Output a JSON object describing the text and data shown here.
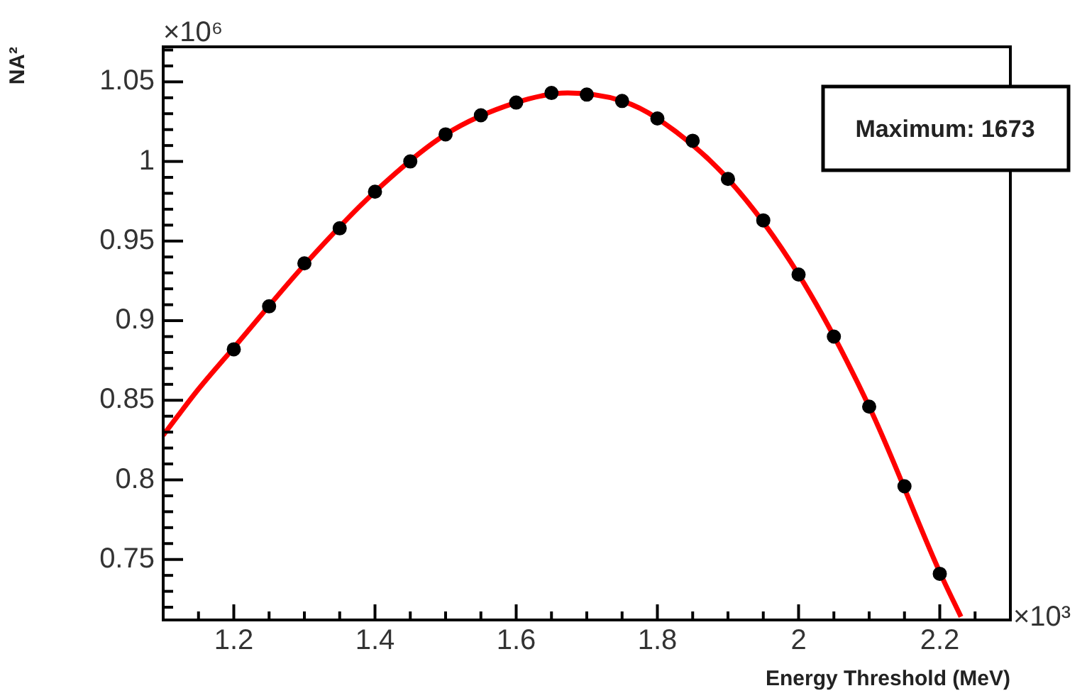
{
  "chart_data": {
    "type": "scatter",
    "xlabel": "Energy Threshold (MeV)",
    "ylabel": "NA²",
    "annotations": [
      "Maximum: 1673",
      "×10⁶",
      "×10³"
    ],
    "series": [
      {
        "type": "scatter",
        "color": "#000000",
        "marker": "circle",
        "x": [
          1.2,
          1.25,
          1.3,
          1.35,
          1.4,
          1.45,
          1.5,
          1.55,
          1.6,
          1.65,
          1.7,
          1.75,
          1.8,
          1.85,
          1.9,
          1.95,
          2.0,
          2.05,
          2.1,
          2.15,
          2.2
        ],
        "values": [
          0.882,
          0.909,
          0.936,
          0.958,
          0.981,
          1.0,
          1.017,
          1.029,
          1.037,
          1.043,
          1.042,
          1.038,
          1.027,
          1.013,
          0.989,
          0.963,
          0.929,
          0.89,
          0.846,
          0.796,
          0.741
        ]
      },
      {
        "type": "line",
        "color": "#ff0000",
        "marker": "none",
        "line_style": "solid",
        "x": [
          1.1,
          1.15,
          1.2,
          1.3,
          1.4,
          1.5,
          1.6,
          1.673,
          1.75,
          1.8,
          1.9,
          2.0,
          2.1,
          2.2,
          2.23
        ],
        "values": [
          0.828,
          0.857,
          0.883,
          0.935,
          0.981,
          1.017,
          1.037,
          1.043,
          1.038,
          1.027,
          0.989,
          0.929,
          0.846,
          0.742,
          0.714
        ]
      }
    ],
    "xlim": [
      1.1,
      2.3
    ],
    "xticks": [
      {
        "value": 1.15,
        "label": null
      },
      1.2,
      {
        "value": 1.25,
        "label": null
      },
      {
        "value": 1.3,
        "label": null
      },
      {
        "value": 1.35,
        "label": null
      },
      1.4,
      {
        "value": 1.45,
        "label": null
      },
      {
        "value": 1.5,
        "label": null
      },
      {
        "value": 1.55,
        "label": null
      },
      1.6,
      {
        "value": 1.65,
        "label": null
      },
      {
        "value": 1.7,
        "label": null
      },
      {
        "value": 1.75,
        "label": null
      },
      1.8,
      {
        "value": 1.85,
        "label": null
      },
      {
        "value": 1.9,
        "label": null
      },
      {
        "value": 1.95,
        "label": null
      },
      2,
      {
        "value": 2.05,
        "label": null
      },
      {
        "value": 2.1,
        "label": null
      },
      {
        "value": 2.15,
        "label": null
      },
      2.2,
      {
        "value": 2.25,
        "label": null
      }
    ],
    "ylim": [
      0.712,
      1.072
    ],
    "yticks": [
      {
        "value": 0.72,
        "label": null
      },
      {
        "value": 0.73,
        "label": null
      },
      {
        "value": 0.74,
        "label": null
      },
      0.75,
      {
        "value": 0.76,
        "label": null
      },
      {
        "value": 0.77,
        "label": null
      },
      {
        "value": 0.78,
        "label": null
      },
      {
        "value": 0.79,
        "label": null
      },
      0.8,
      {
        "value": 0.81,
        "label": null
      },
      {
        "value": 0.82,
        "label": null
      },
      {
        "value": 0.83,
        "label": null
      },
      {
        "value": 0.84,
        "label": null
      },
      0.85,
      {
        "value": 0.86,
        "label": null
      },
      {
        "value": 0.87,
        "label": null
      },
      {
        "value": 0.88,
        "label": null
      },
      {
        "value": 0.89,
        "label": null
      },
      0.9,
      {
        "value": 0.91,
        "label": null
      },
      {
        "value": 0.92,
        "label": null
      },
      {
        "value": 0.93,
        "label": null
      },
      {
        "value": 0.94,
        "label": null
      },
      0.95,
      {
        "value": 0.96,
        "label": null
      },
      {
        "value": 0.97,
        "label": null
      },
      {
        "value": 0.98,
        "label": null
      },
      {
        "value": 0.99,
        "label": null
      },
      1,
      {
        "value": 1.01,
        "label": null
      },
      {
        "value": 1.02,
        "label": null
      },
      {
        "value": 1.03,
        "label": null
      },
      {
        "value": 1.04,
        "label": null
      },
      1.05,
      {
        "value": 1.06,
        "label": null
      },
      {
        "value": 1.07,
        "label": null
      }
    ],
    "grid": false,
    "legend": false
  }
}
